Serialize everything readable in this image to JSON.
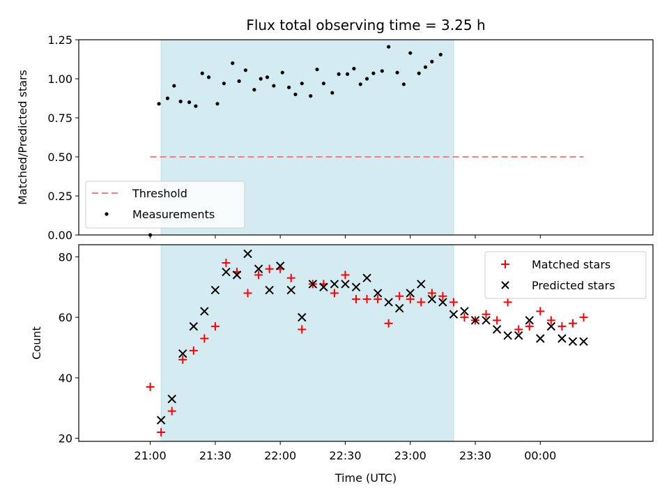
{
  "chart_data": [
    {
      "type": "scatter",
      "title": "Flux total observing time = 3.25 h",
      "ylabel": "Matched/Predicted stars",
      "xlabel": "",
      "ylim": [
        0,
        1.25
      ],
      "yticks": [
        0,
        0.25,
        0.5,
        0.75,
        1.0,
        1.25
      ],
      "ytick_labels": [
        "0.00",
        "0.25",
        "0.50",
        "0.75",
        "1.00",
        "1.25"
      ],
      "observing_window": [
        "21:05",
        "23:20"
      ],
      "legend_position": "lower-left",
      "grid": false,
      "threshold": {
        "name": "Threshold",
        "value": 0.5,
        "from": "21:00",
        "to": "00:20",
        "color": "#f08080"
      },
      "series": [
        {
          "name": "Measurements",
          "color": "#000000",
          "points": [
            [
              "21:00",
              0.0
            ],
            [
              "21:04",
              0.84
            ],
            [
              "21:08",
              0.875
            ],
            [
              "21:11",
              0.955
            ],
            [
              "21:14",
              0.855
            ],
            [
              "21:18",
              0.85
            ],
            [
              "21:21",
              0.825
            ],
            [
              "21:24",
              1.035
            ],
            [
              "21:27",
              1.01
            ],
            [
              "21:31",
              0.84
            ],
            [
              "21:34",
              0.97
            ],
            [
              "21:38",
              1.1
            ],
            [
              "21:41",
              0.985
            ],
            [
              "21:44",
              1.055
            ],
            [
              "21:48",
              0.93
            ],
            [
              "21:51",
              1.0
            ],
            [
              "21:54",
              1.01
            ],
            [
              "21:57",
              0.955
            ],
            [
              "22:01",
              1.04
            ],
            [
              "22:04",
              0.945
            ],
            [
              "22:07",
              0.9
            ],
            [
              "22:10",
              0.97
            ],
            [
              "22:14",
              0.89
            ],
            [
              "22:17",
              1.06
            ],
            [
              "22:20",
              0.97
            ],
            [
              "22:24",
              0.91
            ],
            [
              "22:27",
              1.03
            ],
            [
              "22:31",
              1.03
            ],
            [
              "22:34",
              1.065
            ],
            [
              "22:37",
              0.965
            ],
            [
              "22:40",
              1.0
            ],
            [
              "22:43",
              1.035
            ],
            [
              "22:47",
              1.05
            ],
            [
              "22:50",
              1.205
            ],
            [
              "22:54",
              1.04
            ],
            [
              "22:57",
              0.965
            ],
            [
              "23:00",
              1.165
            ],
            [
              "23:04",
              1.035
            ],
            [
              "23:07",
              1.075
            ],
            [
              "23:10",
              1.11
            ],
            [
              "23:14",
              1.155
            ]
          ]
        }
      ]
    },
    {
      "type": "scatter",
      "title": "",
      "xlabel": "Time (UTC)",
      "ylabel": "Count",
      "ylim": [
        19,
        84
      ],
      "yticks": [
        20,
        40,
        60,
        80
      ],
      "xtick_labels": [
        "21:00",
        "21:30",
        "22:00",
        "22:30",
        "23:00",
        "23:30",
        "00:00"
      ],
      "observing_window": [
        "21:05",
        "23:20"
      ],
      "legend_position": "top-right",
      "grid": false,
      "series": [
        {
          "name": "Matched stars",
          "marker": "+",
          "color": "#ff0000",
          "points": [
            [
              "21:00",
              37
            ],
            [
              "21:05",
              22
            ],
            [
              "21:10",
              29
            ],
            [
              "21:15",
              46
            ],
            [
              "21:20",
              49
            ],
            [
              "21:25",
              53
            ],
            [
              "21:30",
              57
            ],
            [
              "21:35",
              78
            ],
            [
              "21:40",
              75
            ],
            [
              "21:45",
              68
            ],
            [
              "21:50",
              74
            ],
            [
              "21:55",
              76
            ],
            [
              "22:00",
              76
            ],
            [
              "22:05",
              73
            ],
            [
              "22:10",
              56
            ],
            [
              "22:15",
              71
            ],
            [
              "22:20",
              71
            ],
            [
              "22:25",
              68
            ],
            [
              "22:30",
              74
            ],
            [
              "22:35",
              66
            ],
            [
              "22:40",
              66
            ],
            [
              "22:45",
              66
            ],
            [
              "22:50",
              58
            ],
            [
              "22:55",
              67
            ],
            [
              "23:00",
              66
            ],
            [
              "23:05",
              65
            ],
            [
              "23:10",
              68
            ],
            [
              "23:15",
              67
            ],
            [
              "23:20",
              65
            ],
            [
              "23:25",
              60
            ],
            [
              "23:30",
              59
            ],
            [
              "23:35",
              61
            ],
            [
              "23:40",
              59
            ],
            [
              "23:45",
              65
            ],
            [
              "23:50",
              56
            ],
            [
              "23:55",
              57
            ],
            [
              "00:00",
              62
            ],
            [
              "00:05",
              59
            ],
            [
              "00:10",
              57
            ],
            [
              "00:15",
              58
            ],
            [
              "00:20",
              60
            ]
          ]
        },
        {
          "name": "Predicted stars",
          "marker": "x",
          "color": "#000000",
          "points": [
            [
              "21:05",
              26
            ],
            [
              "21:10",
              33
            ],
            [
              "21:15",
              48
            ],
            [
              "21:20",
              57
            ],
            [
              "21:25",
              62
            ],
            [
              "21:30",
              69
            ],
            [
              "21:35",
              75
            ],
            [
              "21:40",
              74
            ],
            [
              "21:45",
              81
            ],
            [
              "21:50",
              76
            ],
            [
              "21:55",
              69
            ],
            [
              "22:00",
              77
            ],
            [
              "22:05",
              69
            ],
            [
              "22:10",
              60
            ],
            [
              "22:15",
              71
            ],
            [
              "22:20",
              70
            ],
            [
              "22:25",
              71
            ],
            [
              "22:30",
              71
            ],
            [
              "22:35",
              70
            ],
            [
              "22:40",
              73
            ],
            [
              "22:45",
              68
            ],
            [
              "22:50",
              65
            ],
            [
              "22:55",
              63
            ],
            [
              "23:00",
              68
            ],
            [
              "23:05",
              71
            ],
            [
              "23:10",
              66
            ],
            [
              "23:15",
              65
            ],
            [
              "23:20",
              61
            ],
            [
              "23:25",
              62
            ],
            [
              "23:30",
              59
            ],
            [
              "23:35",
              59
            ],
            [
              "23:40",
              56
            ],
            [
              "23:45",
              54
            ],
            [
              "23:50",
              54
            ],
            [
              "23:55",
              59
            ],
            [
              "00:00",
              53
            ],
            [
              "00:05",
              57
            ],
            [
              "00:10",
              53
            ],
            [
              "00:15",
              52
            ],
            [
              "00:20",
              52
            ]
          ]
        }
      ]
    }
  ],
  "colors": {
    "observing_window_fill": "#d4ebf1",
    "observing_window_edge": "#bcdde6",
    "threshold": "#f08080",
    "matched": "#ff0000",
    "predicted": "#000000",
    "measurements": "#000000"
  }
}
